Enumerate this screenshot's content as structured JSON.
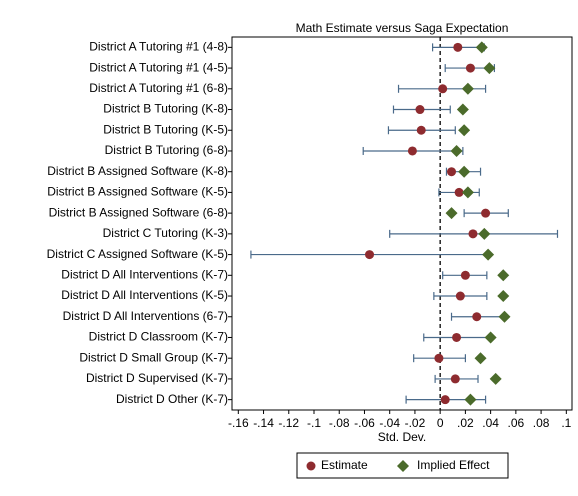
{
  "chart_data": {
    "type": "forest",
    "title": "Math Estimate versus Saga Expectation",
    "x_label": "Std. Dev.",
    "categories": [
      "District A Tutoring #1 (4-8)",
      "District A Tutoring #1 (4-5)",
      "District A Tutoring #1 (6-8)",
      "District B Tutoring (K-8)",
      "District B Tutoring (K-5)",
      "District B Tutoring (6-8)",
      "District B Assigned Software (K-8)",
      "District B Assigned Software (K-5)",
      "District B Assigned Software (6-8)",
      "District C Tutoring (K-3)",
      "District C Assigned Software (K-5)",
      "District D All Interventions (K-7)",
      "District D All Interventions (K-5)",
      "District D All Interventions (6-7)",
      "District D Classroom (K-7)",
      "District D Small Group (K-7)",
      "District D Supervised (K-7)",
      "District D Other (K-7)"
    ],
    "series": [
      {
        "name": "Estimate",
        "color": "#8e2b2f",
        "ci_color": "#4a6a8a",
        "values": [
          0.014,
          0.024,
          0.002,
          -0.016,
          -0.015,
          -0.022,
          0.009,
          0.015,
          0.036,
          0.026,
          -0.056,
          0.02,
          0.016,
          0.029,
          0.013,
          -0.001,
          0.012,
          0.004
        ],
        "ci_low": [
          -0.006,
          0.004,
          -0.033,
          -0.037,
          -0.041,
          -0.061,
          0.005,
          -0.001,
          0.019,
          -0.04,
          -0.15,
          0.002,
          -0.005,
          0.009,
          -0.013,
          -0.021,
          -0.004,
          -0.027
        ],
        "ci_high": [
          0.035,
          0.043,
          0.036,
          0.008,
          0.012,
          0.018,
          0.032,
          0.031,
          0.054,
          0.093,
          0.038,
          0.037,
          0.037,
          0.05,
          0.04,
          0.02,
          0.03,
          0.036
        ]
      },
      {
        "name": "Implied Effect",
        "color": "#4b6b2b",
        "values": [
          0.033,
          0.039,
          0.022,
          0.018,
          0.019,
          0.013,
          0.019,
          0.022,
          0.009,
          0.035,
          0.038,
          0.05,
          0.05,
          0.051,
          0.04,
          0.032,
          0.044,
          0.024
        ]
      }
    ],
    "xlim": [
      -0.165,
      0.1045
    ],
    "xticks": [
      {
        "value": -0.16,
        "label": "-.16"
      },
      {
        "value": -0.14,
        "label": "-.14"
      },
      {
        "value": -0.12,
        "label": "-.12"
      },
      {
        "value": -0.1,
        "label": "-.1"
      },
      {
        "value": -0.08,
        "label": "-.08"
      },
      {
        "value": -0.06,
        "label": "-.06"
      },
      {
        "value": -0.04,
        "label": "-.04"
      },
      {
        "value": -0.02,
        "label": "-.02"
      },
      0,
      {
        "value": 0.02,
        "label": ".02"
      },
      {
        "value": 0.04,
        "label": ".04"
      },
      {
        "value": 0.06,
        "label": ".06"
      },
      {
        "value": 0.08,
        "label": ".08"
      },
      {
        "value": 0.1,
        "label": ".1"
      }
    ],
    "reference_line": 0,
    "legend": "bottom"
  }
}
